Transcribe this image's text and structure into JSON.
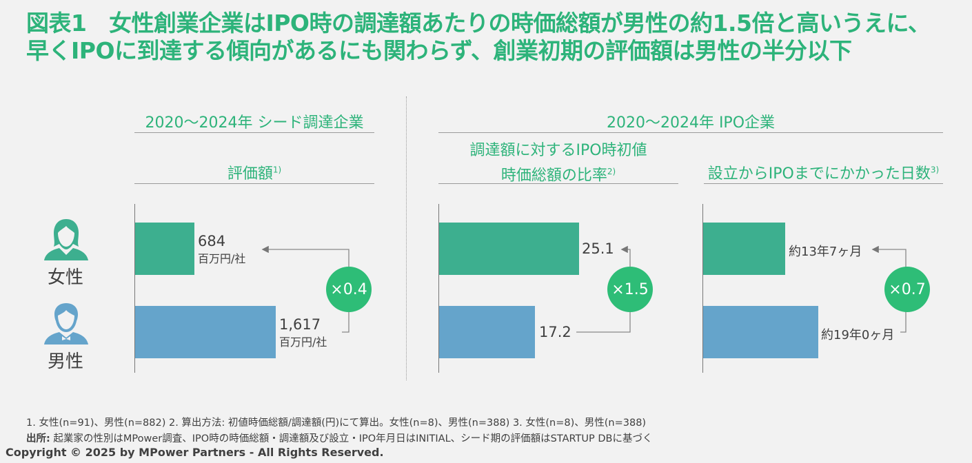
{
  "title": {
    "line1": "図表1　女性創業企業はIPO時の調達額あたりの時価総額が男性の約1.5倍と高いうえに、",
    "line2": "早くIPOに到達する傾向があるにも関わらず、創業初期の評価額は男性の半分以下"
  },
  "sections": {
    "seed": "2020〜2024年 シード調達企業",
    "ipo": "2020〜2024年 IPO企業"
  },
  "genders": {
    "female": "女性",
    "male": "男性"
  },
  "colors": {
    "female": "#3daf8f",
    "male": "#65a4cb",
    "ratio_circle": "#2ebd77",
    "title": "#2db37a"
  },
  "chart_data": [
    {
      "type": "bar",
      "title": "評価額",
      "note_ref": "1)",
      "categories": [
        "女性",
        "男性"
      ],
      "values": [
        684,
        1617
      ],
      "labels": [
        "684",
        "1,617"
      ],
      "unit": "百万円/社",
      "ratio": "×0.4"
    },
    {
      "type": "bar",
      "title_line1": "調達額に対するIPO時初値",
      "title_line2": "時価総額の比率",
      "note_ref": "2)",
      "categories": [
        "女性",
        "男性"
      ],
      "values": [
        25.1,
        17.2
      ],
      "labels": [
        "25.1",
        "17.2"
      ],
      "ratio": "×1.5"
    },
    {
      "type": "bar",
      "title": "設立からIPOまでにかかった日数",
      "note_ref": "3)",
      "categories": [
        "女性",
        "男性"
      ],
      "values": [
        163,
        228
      ],
      "value_unit": "months",
      "labels": [
        "約13年7ヶ月",
        "約19年0ヶ月"
      ],
      "ratio": "×0.7"
    }
  ],
  "footnotes": {
    "line1": "1. 女性(n=91)、男性(n=882)  2. 算出方法: 初値時価総額/調達額(円)にて算出。女性(n=8)、男性(n=388)  3. 女性(n=8)、男性(n=388)",
    "source_label": "出所:",
    "source": " 起業家の性別はMPower調査、IPO時の時価総額・調達額及び設立・IPO年月日はINITIAL、シード期の評価額はSTARTUP DBに基づく",
    "copyright": "Copyright © 2025 by MPower Partners - All Rights Reserved."
  }
}
